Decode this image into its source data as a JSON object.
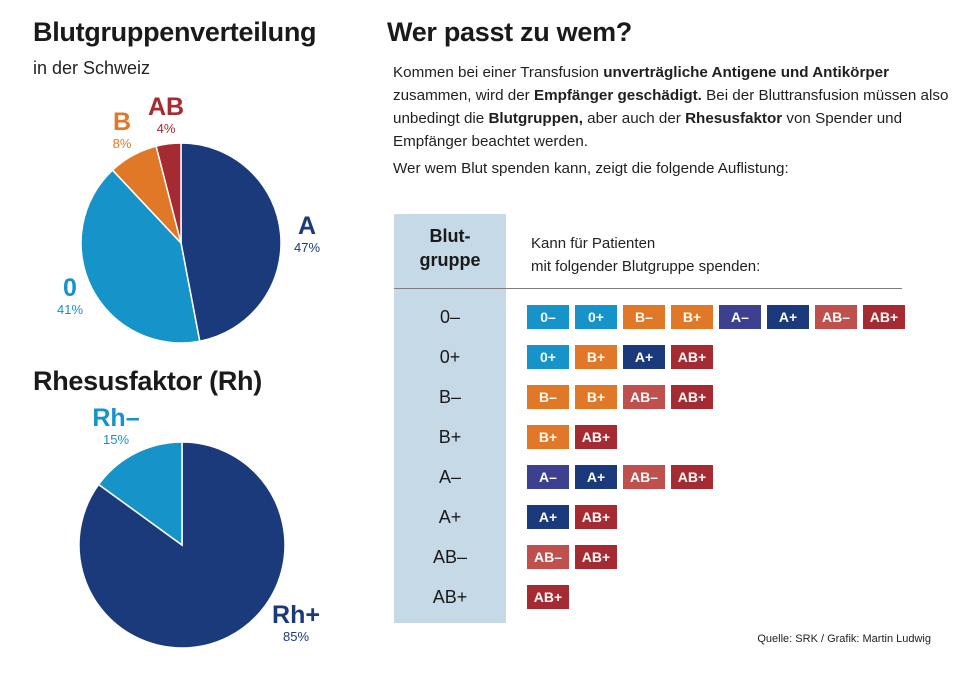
{
  "pie1": {
    "title": "Blutgruppenverteilung",
    "subtitle": "in der Schweiz"
  },
  "pie2": {
    "title": "Rhesusfaktor (Rh)"
  },
  "chart_data": [
    {
      "type": "pie",
      "title": "Blutgruppenverteilung",
      "subtitle": "in der Schweiz",
      "slices": [
        {
          "label": "A",
          "value": 47,
          "pct_text": "47%",
          "color": "#1b3a7c"
        },
        {
          "label": "0",
          "value": 41,
          "pct_text": "41%",
          "color": "#1693c9"
        },
        {
          "label": "B",
          "value": 8,
          "pct_text": "8%",
          "color": "#e07828"
        },
        {
          "label": "AB",
          "value": 4,
          "pct_text": "4%",
          "color": "#a52a32"
        }
      ]
    },
    {
      "type": "pie",
      "title": "Rhesusfaktor (Rh)",
      "slices": [
        {
          "label": "Rh+",
          "value": 85,
          "pct_text": "85%",
          "color": "#1b3a7c"
        },
        {
          "label": "Rh–",
          "value": 15,
          "pct_text": "15%",
          "color": "#1693c9"
        }
      ]
    }
  ],
  "right": {
    "title": "Wer passt zu wem?",
    "intro_parts": [
      [
        "Kommen bei einer Transfusion ",
        false
      ],
      [
        "unverträgliche Antigene und Antikörper",
        true
      ],
      [
        " zusammen, wird der ",
        false
      ],
      [
        "Empfänger geschädigt.",
        true
      ],
      [
        " Bei der Bluttransfusion müssen also unbedingt die ",
        false
      ],
      [
        "Blutgruppen,",
        true
      ],
      [
        " aber auch der ",
        false
      ],
      [
        "Rhesusfaktor",
        true
      ],
      [
        " von Spender und Empfänger beachtet werden.",
        false
      ]
    ],
    "intro2": "Wer wem Blut spenden kann, zeigt die folgende Auflistung:",
    "col_header_line1": "Blut-",
    "col_header_line2": "gruppe",
    "can_header_line1": "Kann für Patienten",
    "can_header_line2": "mit folgender Blutgruppe spenden:"
  },
  "tag_colors": {
    "0–": "#1693c9",
    "0+": "#1693c9",
    "B–": "#e07828",
    "B+": "#e07828",
    "A–": "#3d3f8f",
    "A+": "#1b3a7c",
    "AB–": "#c0504d",
    "AB+": "#a52a32"
  },
  "compat": [
    {
      "group": "0–",
      "can_give": [
        "0–",
        "0+",
        "B–",
        "B+",
        "A–",
        "A+",
        "AB–",
        "AB+"
      ]
    },
    {
      "group": "0+",
      "can_give": [
        "0+",
        "B+",
        "A+",
        "AB+"
      ]
    },
    {
      "group": "B–",
      "can_give": [
        "B–",
        "B+",
        "AB–",
        "AB+"
      ]
    },
    {
      "group": "B+",
      "can_give": [
        "B+",
        "AB+"
      ]
    },
    {
      "group": "A–",
      "can_give": [
        "A–",
        "A+",
        "AB–",
        "AB+"
      ]
    },
    {
      "group": "A+",
      "can_give": [
        "A+",
        "AB+"
      ]
    },
    {
      "group": "AB–",
      "can_give": [
        "AB–",
        "AB+"
      ]
    },
    {
      "group": "AB+",
      "can_give": [
        "AB+"
      ]
    }
  ],
  "source": "Quelle: SRK / Grafik: Martin Ludwig"
}
